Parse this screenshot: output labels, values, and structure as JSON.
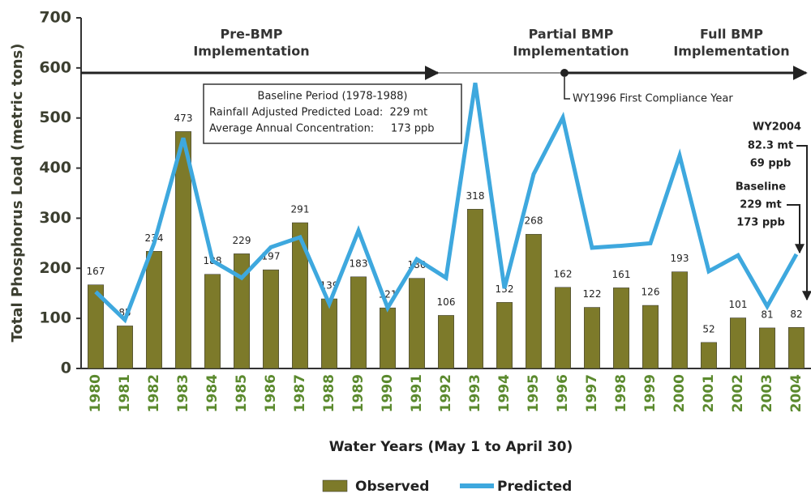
{
  "chart_data": {
    "type": "bar",
    "y_label": "Total Phosphorus Load (metric tons)",
    "x_label": "Water Years (May 1 to April 30)",
    "categories": [
      "1980",
      "1981",
      "1982",
      "1983",
      "1984",
      "1985",
      "1986",
      "1987",
      "1988",
      "1989",
      "1990",
      "1991",
      "1992",
      "1993",
      "1994",
      "1995",
      "1996",
      "1997",
      "1998",
      "1999",
      "2000",
      "2001",
      "2002",
      "2003",
      "2004"
    ],
    "series": [
      {
        "name": "Observed",
        "type": "bar",
        "color": "#7d7a2a",
        "values": [
          167,
          85,
          234,
          473,
          188,
          229,
          197,
          291,
          139,
          183,
          121,
          180,
          106,
          318,
          132,
          268,
          162,
          122,
          161,
          126,
          193,
          52,
          101,
          81,
          82
        ]
      },
      {
        "name": "Predicted",
        "type": "line",
        "color": "#3ea8de",
        "values": [
          153,
          97,
          250,
          460,
          215,
          181,
          242,
          262,
          129,
          275,
          121,
          218,
          181,
          570,
          160,
          388,
          501,
          241,
          245,
          250,
          425,
          194,
          226,
          124,
          228
        ]
      }
    ],
    "ylim": [
      0,
      700
    ],
    "yticks": [
      0,
      100,
      200,
      300,
      400,
      500,
      600,
      700
    ],
    "legend": "bottom",
    "annotations": {
      "phases": [
        [
          "Pre-BMP",
          "Implementation"
        ],
        [
          "Partial BMP",
          "Implementation"
        ],
        [
          "Full BMP",
          "Implementation"
        ]
      ],
      "baseline_box": [
        "Baseline Period (1978-1988)",
        "Rainfall Adjusted Predicted Load:  229 mt",
        "Average Annual Concentration:     173 ppb"
      ],
      "compliance": "WY1996 First Compliance Year",
      "wy2004": [
        "WY2004",
        "82.3 mt",
        "69 ppb"
      ],
      "baseline": [
        "Baseline",
        "229 mt",
        "173 ppb"
      ]
    }
  }
}
